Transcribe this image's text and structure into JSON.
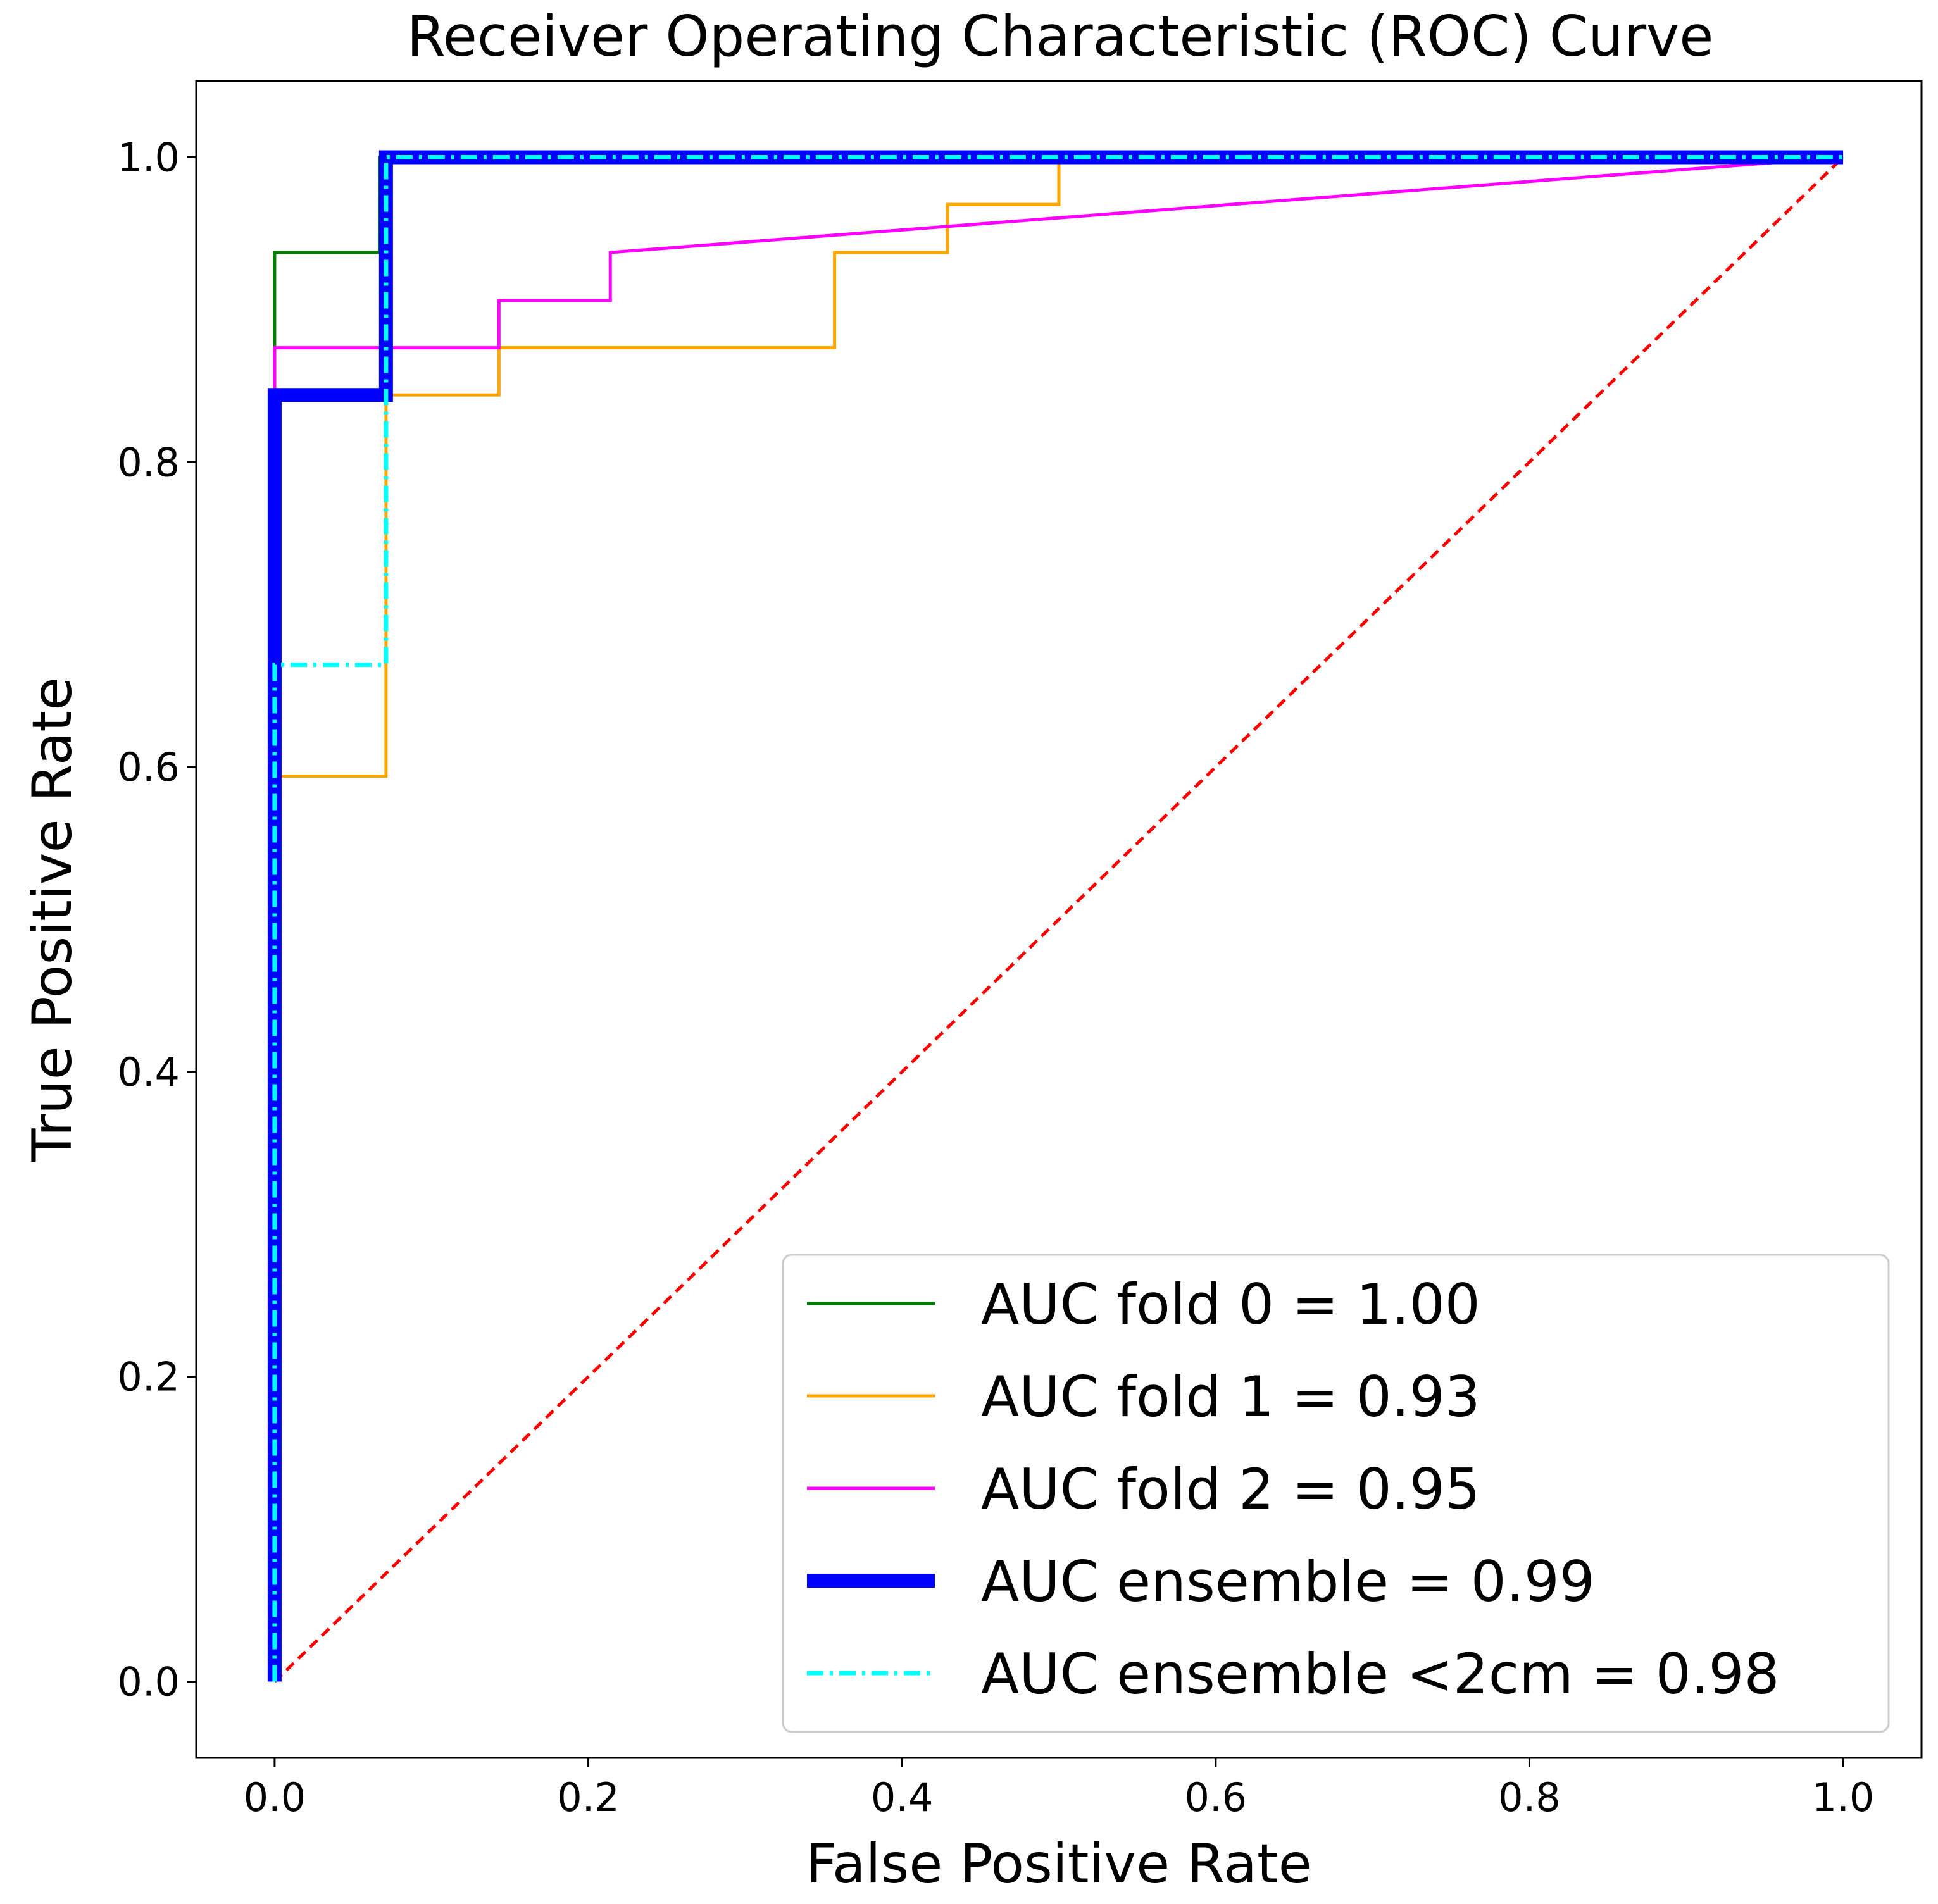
{
  "chart_data": {
    "type": "line",
    "title": "Receiver Operating Characteristic (ROC) Curve",
    "xlabel": "False Positive Rate",
    "ylabel": "True Positive Rate",
    "xlim": [
      -0.05,
      1.05
    ],
    "ylim": [
      -0.05,
      1.05
    ],
    "xticks": [
      0.0,
      0.2,
      0.4,
      0.6,
      0.8,
      1.0
    ],
    "yticks": [
      0.0,
      0.2,
      0.4,
      0.6,
      0.8,
      1.0
    ],
    "xtick_labels": [
      "0.0",
      "0.2",
      "0.4",
      "0.6",
      "0.8",
      "1.0"
    ],
    "ytick_labels": [
      "0.0",
      "0.2",
      "0.4",
      "0.6",
      "0.8",
      "1.0"
    ],
    "grid": false,
    "legend_position": "lower-right",
    "series": [
      {
        "name": "AUC fold 0 = 1.00",
        "color": "#008000",
        "style": "solid",
        "x": [
          0.0,
          0.0,
          0.0,
          0.067,
          0.067,
          1.0
        ],
        "y": [
          0.0,
          0.875,
          0.9375,
          0.9375,
          1.0,
          1.0
        ]
      },
      {
        "name": "AUC fold 1 = 0.93",
        "color": "#ffa500",
        "style": "solid",
        "x": [
          0.0,
          0.0,
          0.071,
          0.071,
          0.143,
          0.143,
          0.357,
          0.357,
          0.429,
          0.429,
          0.5,
          0.5,
          1.0
        ],
        "y": [
          0.0,
          0.594,
          0.594,
          0.844,
          0.844,
          0.875,
          0.875,
          0.9375,
          0.9375,
          0.969,
          0.969,
          1.0,
          1.0
        ]
      },
      {
        "name": "AUC fold 2 = 0.95",
        "color": "#ff00ff",
        "style": "solid",
        "x": [
          0.0,
          0.0,
          0.143,
          0.143,
          0.214,
          0.214,
          1.0
        ],
        "y": [
          0.0,
          0.875,
          0.875,
          0.906,
          0.906,
          0.9375,
          1.0
        ]
      },
      {
        "name": "AUC ensemble = 0.99",
        "color": "#0000ff",
        "style": "thick",
        "x": [
          0.0,
          0.0,
          0.071,
          0.071,
          1.0
        ],
        "y": [
          0.0,
          0.844,
          0.844,
          1.0,
          1.0
        ]
      },
      {
        "name": "AUC ensemble <2cm = 0.98",
        "color": "#00ffff",
        "style": "dashdot",
        "x": [
          0.0,
          0.0,
          0.071,
          0.071,
          1.0
        ],
        "y": [
          0.0,
          0.667,
          0.667,
          1.0,
          1.0
        ]
      }
    ],
    "reference_line": {
      "color": "#ff0000",
      "style": "dashed",
      "x": [
        0.0,
        1.0
      ],
      "y": [
        0.0,
        1.0
      ]
    }
  }
}
